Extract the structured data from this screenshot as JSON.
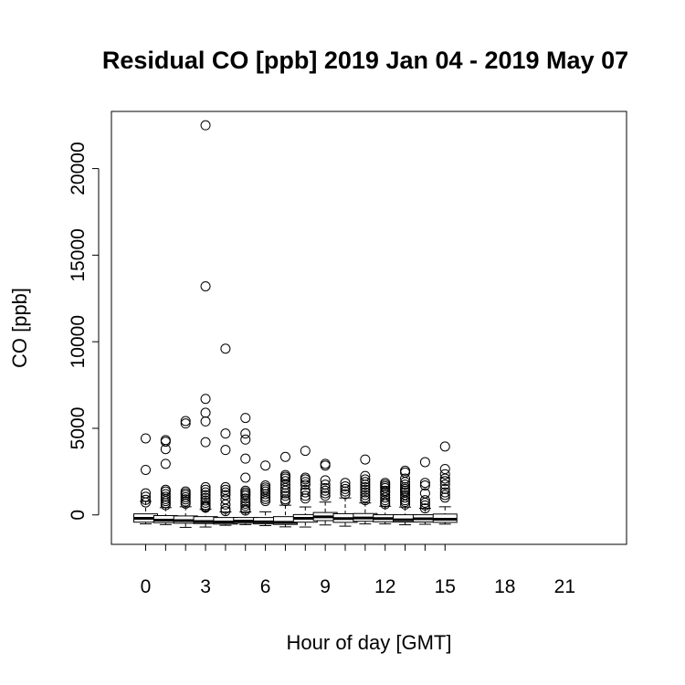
{
  "chart_data": {
    "type": "box",
    "title": "Residual CO [ppb] 2019 Jan 04 - 2019 May 07",
    "xlabel": "Hour of day [GMT]",
    "ylabel": "CO [ppb]",
    "ylim": [
      -1700,
      23300
    ],
    "y_ticks": [
      0,
      5000,
      10000,
      15000,
      20000
    ],
    "x_tick_labels": [
      {
        "hour": 0,
        "label": "0"
      },
      {
        "hour": 3,
        "label": "3"
      },
      {
        "hour": 6,
        "label": "6"
      },
      {
        "hour": 9,
        "label": "9"
      },
      {
        "hour": 12,
        "label": "12"
      },
      {
        "hour": 15,
        "label": "15"
      },
      {
        "hour": 18,
        "label": "18"
      },
      {
        "hour": 21,
        "label": "21"
      }
    ],
    "grid": false,
    "legend": "none",
    "boxes": [
      {
        "hour": 0,
        "whisker_low": -520,
        "q1": -420,
        "median": -200,
        "q3": 60,
        "whisker_high": 780,
        "outliers": [
          4420,
          2600,
          1250,
          1050,
          870,
          720
        ]
      },
      {
        "hour": 1,
        "whisker_low": -560,
        "q1": -450,
        "median": -300,
        "q3": -40,
        "whisker_high": 420,
        "outliers": [
          4320,
          4230,
          3800,
          2950,
          1450,
          1350,
          1200,
          1050,
          920,
          800,
          680,
          560
        ]
      },
      {
        "hour": 2,
        "whisker_low": -720,
        "q1": -480,
        "median": -330,
        "q3": -60,
        "whisker_high": 470,
        "outliers": [
          5420,
          5280,
          1350,
          1250,
          1150,
          1020,
          900,
          770,
          650
        ]
      },
      {
        "hour": 3,
        "whisker_low": -700,
        "q1": -500,
        "median": -380,
        "q3": -100,
        "whisker_high": 320,
        "outliers": [
          22500,
          13200,
          6700,
          5900,
          5400,
          4200,
          1600,
          1450,
          1300,
          1150,
          980,
          830,
          700,
          560,
          480,
          420
        ]
      },
      {
        "hour": 4,
        "whisker_low": -600,
        "q1": -530,
        "median": -410,
        "q3": -150,
        "whisker_high": 170,
        "outliers": [
          9600,
          4700,
          3750,
          1600,
          1450,
          1300,
          1150,
          900,
          600,
          350,
          220
        ]
      },
      {
        "hour": 5,
        "whisker_low": -560,
        "q1": -480,
        "median": -360,
        "q3": -150,
        "whisker_high": 170,
        "outliers": [
          5600,
          4700,
          4350,
          3250,
          2150,
          1400,
          1300,
          1200,
          1100,
          950,
          800,
          650,
          520,
          350,
          250
        ]
      },
      {
        "hour": 6,
        "whisker_low": -620,
        "q1": -520,
        "median": -400,
        "q3": -150,
        "whisker_high": 180,
        "outliers": [
          2850,
          1700,
          1580,
          1470,
          1350,
          1200,
          1050,
          920,
          800
        ]
      },
      {
        "hour": 7,
        "whisker_low": -690,
        "q1": -550,
        "median": -430,
        "q3": -100,
        "whisker_high": 560,
        "outliers": [
          3350,
          2300,
          2200,
          2100,
          1950,
          1750,
          1550,
          1400,
          1250,
          1100,
          900,
          800
        ]
      },
      {
        "hour": 8,
        "whisker_low": -700,
        "q1": -420,
        "median": -200,
        "q3": 20,
        "whisker_high": 460,
        "outliers": [
          3700,
          2150,
          2050,
          1900,
          1750,
          1450,
          1300,
          1100,
          950
        ]
      },
      {
        "hour": 9,
        "whisker_low": -580,
        "q1": -330,
        "median": -110,
        "q3": 140,
        "whisker_high": 740,
        "outliers": [
          2950,
          2850,
          2000,
          1750,
          1550,
          1400,
          1250,
          1100
        ]
      },
      {
        "hour": 10,
        "whisker_low": -650,
        "q1": -430,
        "median": -210,
        "q3": 70,
        "whisker_high": 980,
        "outliers": [
          1850,
          1650,
          1500,
          1350,
          1200
        ]
      },
      {
        "hour": 11,
        "whisker_low": -520,
        "q1": -370,
        "median": -180,
        "q3": 80,
        "whisker_high": 690,
        "outliers": [
          3200,
          2250,
          2050,
          1900,
          1750,
          1600,
          1450,
          1300,
          1150,
          1000,
          850
        ]
      },
      {
        "hour": 12,
        "whisker_low": -520,
        "q1": -400,
        "median": -210,
        "q3": 10,
        "whisker_high": 500,
        "outliers": [
          1850,
          1750,
          1650,
          1550,
          1400,
          1300,
          1150,
          1000,
          850,
          720,
          620
        ]
      },
      {
        "hour": 13,
        "whisker_low": -570,
        "q1": -410,
        "median": -280,
        "q3": 10,
        "whisker_high": 450,
        "outliers": [
          2550,
          2450,
          2100,
          1900,
          1750,
          1600,
          1500,
          1400,
          1300,
          1150,
          1000,
          850,
          750,
          600
        ]
      },
      {
        "hour": 14,
        "whisker_low": -540,
        "q1": -410,
        "median": -220,
        "q3": 10,
        "whisker_high": 380,
        "outliers": [
          3050,
          1850,
          1700,
          1250,
          850,
          700,
          550,
          380
        ]
      },
      {
        "hour": 15,
        "whisker_low": -530,
        "q1": -430,
        "median": -250,
        "q3": 50,
        "whisker_high": 470,
        "outliers": [
          3950,
          2650,
          2350,
          2100,
          1950,
          1750,
          1500,
          1300,
          1150,
          1000
        ]
      }
    ]
  }
}
